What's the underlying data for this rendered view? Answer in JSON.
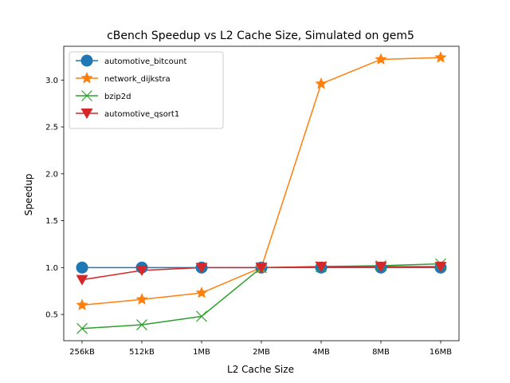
{
  "chart_data": {
    "type": "line",
    "title": "cBench Speedup vs L2 Cache Size, Simulated on gem5",
    "xlabel": "L2 Cache Size",
    "ylabel": "Speedup",
    "categories": [
      "256kB",
      "512kB",
      "1MB",
      "2MB",
      "4MB",
      "8MB",
      "16MB"
    ],
    "ylim": [
      0.22,
      3.36
    ],
    "yticks": [
      0.5,
      1.0,
      1.5,
      2.0,
      2.5,
      3.0
    ],
    "ytick_labels": [
      "0.5",
      "1.0",
      "1.5",
      "2.0",
      "2.5",
      "3.0"
    ],
    "grid": false,
    "legend": "top-left",
    "series": [
      {
        "name": "automotive_bitcount",
        "color": "#1f77b4",
        "marker": "circle",
        "values": [
          1.0,
          1.0,
          1.0,
          1.0,
          1.0,
          1.0,
          1.0
        ]
      },
      {
        "name": "network_dijkstra",
        "color": "#ff7f0e",
        "marker": "star",
        "values": [
          0.6,
          0.66,
          0.73,
          1.0,
          2.96,
          3.22,
          3.24
        ]
      },
      {
        "name": "bzip2d",
        "color": "#2ca02c",
        "marker": "x",
        "values": [
          0.35,
          0.39,
          0.48,
          1.0,
          1.01,
          1.02,
          1.04
        ]
      },
      {
        "name": "automotive_qsort1",
        "color": "#d62728",
        "marker": "triangle-down",
        "values": [
          0.87,
          0.97,
          1.0,
          1.0,
          1.01,
          1.01,
          1.01
        ]
      }
    ]
  }
}
